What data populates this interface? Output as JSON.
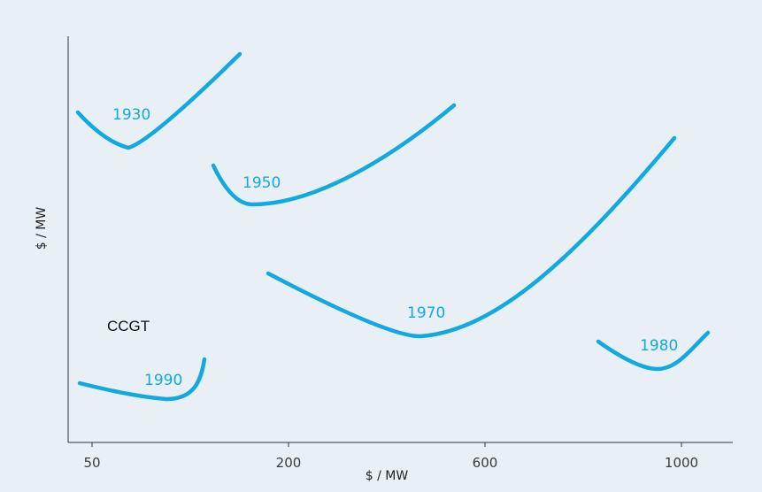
{
  "chart_data": {
    "type": "line",
    "title": "",
    "xlabel": "$ / MW",
    "ylabel": "$ / MW",
    "x_ticks": [
      "50",
      "200",
      "600",
      "1000"
    ],
    "annotations": [
      "CCGT"
    ],
    "grid": false,
    "legend": "none",
    "color": "#12a8e0",
    "series": [
      {
        "name": "1930"
      },
      {
        "name": "1950"
      },
      {
        "name": "1970"
      },
      {
        "name": "1980"
      },
      {
        "name": "1990"
      }
    ]
  }
}
